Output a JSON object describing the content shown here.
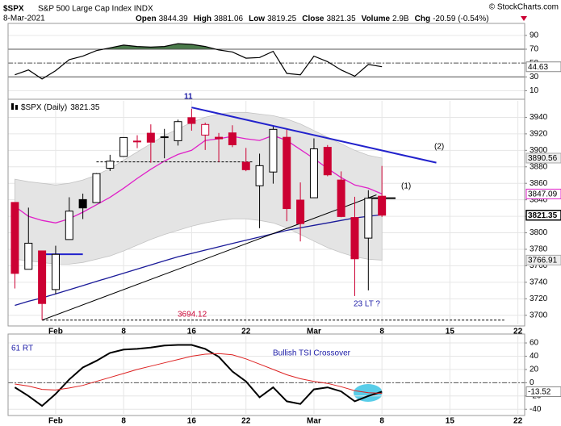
{
  "header": {
    "symbol": "$SPX",
    "name": "S&P 500 Large Cap Index INDX",
    "date": "8-Mar-2021",
    "credit": "© StockCharts.com",
    "quote": [
      {
        "label": "Open",
        "value": 3844.39
      },
      {
        "label": "High",
        "value": 3881.06
      },
      {
        "label": "Low",
        "value": 3819.25
      },
      {
        "label": "Close",
        "value": 3821.35
      },
      {
        "label": "Volume",
        "value": "2.9B"
      },
      {
        "label": "Chg",
        "value": "-20.59 (-0.54%)"
      }
    ]
  },
  "chart_data": [
    {
      "type": "line",
      "xlim": [
        -0.5,
        37.5
      ],
      "ylim": [
        0,
        105
      ],
      "yticks": [
        10,
        30,
        50,
        70,
        90
      ],
      "grid": true,
      "bands": [
        30,
        70
      ],
      "midline": 50,
      "fill_above": {
        "level": 70,
        "color": "#4a7a4a"
      },
      "series": [
        {
          "color": "#000000",
          "show_last": true,
          "values": [
            33,
            40,
            27,
            39,
            55,
            60,
            68,
            72,
            76,
            74,
            73,
            74,
            78,
            77,
            74,
            69,
            66,
            57,
            58,
            67,
            35,
            33,
            60,
            52,
            40,
            31,
            48,
            44.63
          ]
        }
      ]
    },
    {
      "type": "candlestick",
      "legend_label": "$SPX (Daily)",
      "xlim": [
        -0.5,
        37.5
      ],
      "ylim": [
        3689,
        3960
      ],
      "yticks": [
        3700,
        3720,
        3740,
        3760,
        3780,
        3800,
        3820,
        3840,
        3860,
        3880,
        3900,
        3920,
        3940
      ],
      "xticks": [
        {
          "value": 3,
          "label": "Feb"
        },
        {
          "value": 8,
          "label": "8"
        },
        {
          "value": 13,
          "label": "16"
        },
        {
          "value": 17,
          "label": "22"
        },
        {
          "value": 22,
          "label": "Mar"
        },
        {
          "value": 27,
          "label": "8"
        },
        {
          "value": 32,
          "label": "15"
        },
        {
          "value": 37,
          "label": "22"
        }
      ],
      "grid": true,
      "up_color": "#000000",
      "down_color": "#cc0033",
      "show_last": true,
      "open": [
        3836.83,
        3755.75,
        3778.05,
        3731.17,
        3791.84,
        3840.27,
        3836.66,
        3878.3,
        3892.59,
        3910.49,
        3920.78,
        3916.4,
        3911.65,
        3939.61,
        3918.5,
        3915.86,
        3921.16,
        3885.55,
        3857.07,
        3873.71,
        3915.8,
        3839.66,
        3842.51,
        3903.64,
        3863.99,
        3818.53,
        3793.58,
        3844.39
      ],
      "high": [
        3836.83,
        3830.5,
        3778.05,
        3784.32,
        3843.09,
        3847.51,
        3872.42,
        3894.56,
        3915.77,
        3918.35,
        3931.5,
        3925.99,
        3937.23,
        3950.43,
        3933.61,
        3921.04,
        3930.41,
        3902.92,
        3895.98,
        3928.65,
        3925.02,
        3861.08,
        3914.5,
        3906.41,
        3874.47,
        3843.67,
        3851.69,
        3881.06
      ],
      "low": [
        3732.48,
        3755.75,
        3694.12,
        3725.62,
        3791.84,
        3816.68,
        3836.66,
        3874.93,
        3892.59,
        3902.64,
        3884.94,
        3890.39,
        3905.78,
        3923.85,
        3900.43,
        3885.73,
        3903.87,
        3874.73,
        3805.59,
        3859.6,
        3814.04,
        3789.54,
        3842.51,
        3868.57,
        3818.86,
        3723.34,
        3730.19,
        3819.25
      ],
      "close": [
        3750.77,
        3787.38,
        3714.24,
        3773.86,
        3826.31,
        3830.17,
        3871.74,
        3886.83,
        3915.59,
        3911.23,
        3909.88,
        3916.38,
        3934.83,
        3932.59,
        3931.33,
        3913.97,
        3906.71,
        3876.5,
        3881.37,
        3925.43,
        3829.34,
        3811.15,
        3901.82,
        3870.29,
        3819.72,
        3768.47,
        3841.94,
        3821.35
      ],
      "band": {
        "color": "#e4e4e4",
        "edge_color": "#c4c4c4",
        "show_last": true,
        "upper": [
          3865,
          3862,
          3860,
          3858,
          3860,
          3864,
          3870,
          3878,
          3888,
          3898,
          3908,
          3918,
          3926,
          3934,
          3940,
          3944,
          3946,
          3946,
          3944,
          3942,
          3938,
          3932,
          3924,
          3916,
          3908,
          3900,
          3894,
          3890.56
        ],
        "lower": [
          3768,
          3766,
          3764,
          3762,
          3762,
          3764,
          3768,
          3772,
          3778,
          3785,
          3792,
          3798,
          3803,
          3808,
          3812,
          3815,
          3817,
          3817,
          3815,
          3812,
          3806,
          3798,
          3790,
          3782,
          3776,
          3771,
          3768,
          3766.91
        ]
      },
      "overlays": [
        {
          "color": "#e020c8",
          "show_last": true,
          "values": [
            3832,
            3820,
            3815,
            3812,
            3817,
            3825,
            3834,
            3843,
            3854,
            3866,
            3877,
            3887,
            3895,
            3900,
            3912,
            3914,
            3917,
            3914,
            3912,
            3918,
            3912,
            3901,
            3890,
            3878,
            3867,
            3858,
            3854,
            3847.09
          ]
        },
        {
          "color": "#1a1a99",
          "values": [
            3712,
            3717,
            3721,
            3726,
            3731,
            3736,
            3741,
            3746,
            3751,
            3756,
            3761,
            3766,
            3771,
            3775,
            3779,
            3783,
            3787,
            3791,
            3795,
            3799,
            3803,
            3806,
            3809,
            3812,
            3815,
            3818,
            3820,
            3822
          ]
        }
      ],
      "trendlines": [
        {
          "color": "#2222cc",
          "width": 2,
          "points": [
            [
              13,
              3952
            ],
            [
              31,
              3885
            ]
          ]
        },
        {
          "color": "#000000",
          "width": 1,
          "points": [
            [
              2,
              3694.12
            ],
            [
              26.6,
              3846
            ]
          ]
        },
        {
          "color": "#000000",
          "width": 1,
          "dash": true,
          "points": [
            [
              6,
              3886
            ],
            [
              17.5,
              3886
            ]
          ]
        },
        {
          "color": "#000000",
          "width": 1,
          "dash": true,
          "points": [
            [
              2,
              3694.12
            ],
            [
              36,
              3694.12
            ]
          ]
        },
        {
          "color": "#2222cc",
          "width": 2,
          "points": [
            [
              2,
              3774
            ],
            [
              5,
              3774
            ]
          ]
        },
        {
          "color": "#000000",
          "width": 2,
          "points": [
            [
              26,
              3842
            ],
            [
              28,
              3842
            ]
          ]
        }
      ],
      "annotations": [
        {
          "text": "11",
          "color": "#1a1aa6"
        },
        {
          "text": "(2)",
          "color": "#000000"
        },
        {
          "text": "(1)",
          "color": "#000000"
        },
        {
          "text": "23 LT ?",
          "color": "#1a1aa6"
        },
        {
          "text": "3694.12",
          "color": "#cc0033"
        }
      ]
    },
    {
      "type": "line",
      "xlim": [
        -0.5,
        37.5
      ],
      "ylim": [
        -47,
        71
      ],
      "yticks": [
        -40,
        -20,
        0,
        20,
        40,
        60
      ],
      "grid": true,
      "midline": 0,
      "xticks": [
        {
          "value": 3,
          "label": "Feb"
        },
        {
          "value": 8,
          "label": "8"
        },
        {
          "value": 13,
          "label": "16"
        },
        {
          "value": 17,
          "label": "22"
        },
        {
          "value": 22,
          "label": "Mar"
        },
        {
          "value": 27,
          "label": "8"
        },
        {
          "value": 32,
          "label": "15"
        },
        {
          "value": 37,
          "label": "22"
        }
      ],
      "series": [
        {
          "color": "#000000",
          "width": 2,
          "show_last": true,
          "values": [
            -7,
            -20,
            -35,
            -17,
            5,
            23,
            33,
            45,
            50,
            51,
            53,
            56,
            57,
            57,
            51,
            39,
            17,
            2,
            -22,
            -7,
            -28,
            -32,
            -10,
            -7,
            -13,
            -28,
            -20,
            -13.52
          ]
        },
        {
          "color": "#dd2222",
          "width": 1,
          "values": [
            -2,
            -5,
            -10,
            -11,
            -8,
            -4,
            2,
            8,
            14,
            20,
            25,
            30,
            35,
            40,
            43,
            44,
            42,
            36,
            28,
            20,
            12,
            6,
            2,
            -1,
            -6,
            -12,
            -15,
            -16
          ]
        }
      ],
      "annotations": [
        {
          "text": "61 RT",
          "color": "#1a1aa6"
        },
        {
          "text": "Bullish TSI Crossover",
          "color": "#1a1aa6"
        }
      ]
    }
  ]
}
